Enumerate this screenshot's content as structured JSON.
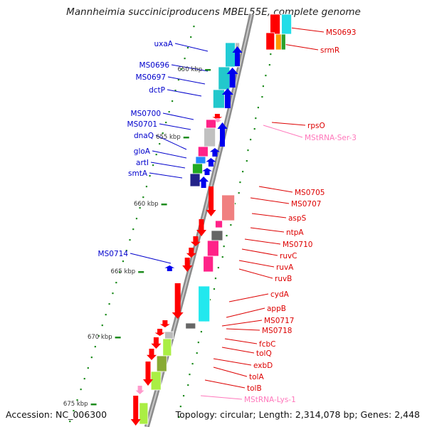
{
  "title": "Mannheimia succiniciproducens MBEL55E, complete genome",
  "footer": {
    "accession": "Accession: NC_006300",
    "topology": "Topology: circular; Length: 2,314,078 bp; Genes: 2,448"
  },
  "colors": {
    "backbone": "#8c8c8c",
    "tick": "#1e8c1e",
    "left_label": "#0000cc",
    "right_label": "#dd0000",
    "rna_label": "#ff77bb"
  },
  "kbp_markers": [
    "650 kbp",
    "655 kbp",
    "660 kbp",
    "665 kbp",
    "670 kbp",
    "675 kbp"
  ],
  "left_genes": [
    "uxaA",
    "MS0696",
    "MS0697",
    "dctP",
    "MS0700",
    "MS0701",
    "dnaQ",
    "gloA",
    "artI",
    "smtA",
    "MS0714"
  ],
  "right_genes": [
    "MS0693",
    "srmR",
    "rpsO",
    "MStRNA-Ser-3",
    "MS0705",
    "MS0707",
    "aspS",
    "ntpA",
    "MS0710",
    "ruvC",
    "ruvA",
    "ruvB",
    "cydA",
    "appB",
    "MS0717",
    "MS0718",
    "fcbC",
    "tolQ",
    "exbD",
    "tolA",
    "tolB",
    "MStRNA-Lys-1"
  ]
}
